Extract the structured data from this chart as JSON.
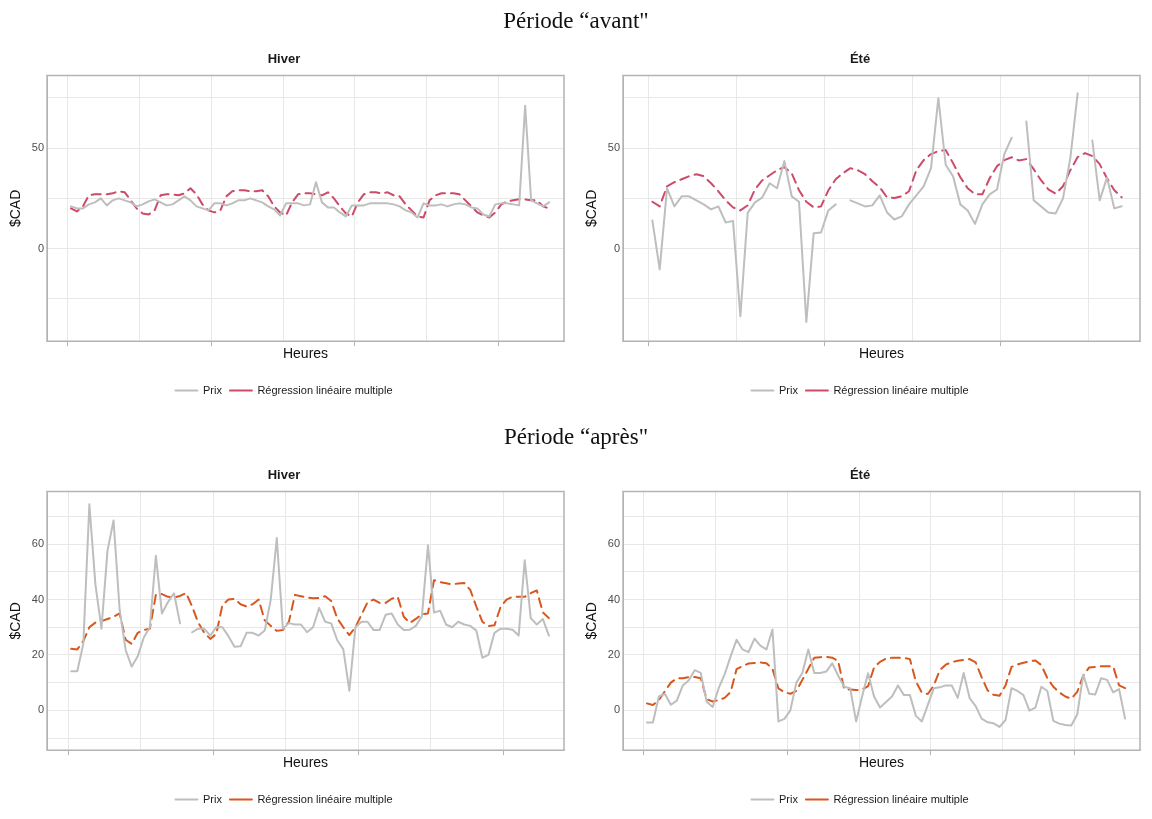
{
  "chart_data": [
    {
      "type": "line",
      "subtitle": "Période “avant\"",
      "title": "Hiver",
      "xlabel": "Heures",
      "ylabel": "$CAD",
      "legend": "bottom",
      "grid": true,
      "marker": "none",
      "tick_labels": "y",
      "categories": [
        null,
        null,
        null,
        null,
        null,
        null,
        null,
        null,
        null,
        null,
        null,
        null,
        null,
        null,
        null,
        null,
        null,
        null,
        null,
        null,
        null,
        null,
        null,
        null,
        null,
        null,
        null,
        null,
        null,
        null,
        null,
        null,
        null,
        null,
        null,
        null,
        null,
        null,
        null,
        null,
        null,
        null,
        null,
        null,
        null,
        null,
        null,
        null,
        null,
        null,
        null,
        null,
        null,
        null,
        null,
        null,
        null,
        null,
        null,
        null,
        null,
        null,
        null,
        null,
        null,
        null,
        null,
        null,
        null,
        null,
        null,
        null,
        null,
        null,
        null,
        null,
        null,
        null,
        null,
        null,
        null
      ],
      "ylim": [
        -46,
        86
      ],
      "yticks": [
        {
          "value": -25,
          "label": null
        },
        0,
        {
          "value": 25,
          "label": null
        },
        50,
        {
          "value": 75,
          "label": null
        }
      ],
      "series": [
        {
          "name": "Prix",
          "color": "#bebebe",
          "line_style": "solid",
          "values": [
            21,
            20,
            20,
            22,
            23,
            25,
            21.5,
            24,
            25,
            24,
            23,
            21,
            22,
            23.5,
            24.5,
            23,
            21.5,
            22,
            24,
            26,
            24,
            21,
            20,
            19,
            22.5,
            22.5,
            21.5,
            22.5,
            24,
            24,
            25,
            24,
            23,
            21,
            19.5,
            16.5,
            22.5,
            22.5,
            22.5,
            21.5,
            22,
            33,
            23,
            20.5,
            20.5,
            18,
            16,
            21.5,
            21.5,
            21.5,
            22.5,
            22.5,
            22.5,
            22.5,
            22,
            21,
            19,
            18,
            15.5,
            22.5,
            21.5,
            21.5,
            22,
            21,
            22,
            22.5,
            22,
            20.5,
            20,
            17,
            16,
            22,
            22.5,
            22.5,
            22,
            21.5,
            71,
            24,
            22.5,
            21,
            23
          ]
        },
        {
          "name": "Régression linéaire multiple",
          "color": "#cd4a68",
          "line_style": "dashed",
          "values": [
            20,
            18.5,
            21,
            26.5,
            27,
            27,
            27,
            27.5,
            28.5,
            28,
            24,
            20,
            17.5,
            17,
            19,
            26.5,
            27,
            27,
            26.5,
            27.5,
            30,
            27,
            22,
            19,
            18,
            19,
            26,
            28.5,
            29,
            29,
            28.5,
            28.5,
            29,
            26,
            21,
            18,
            16.5,
            23,
            27,
            27.5,
            27.5,
            27,
            26.5,
            28,
            25,
            21,
            17.5,
            16,
            23,
            27,
            28,
            28,
            27.5,
            28,
            26.5,
            26,
            22,
            19,
            16,
            15.5,
            24,
            26.5,
            27.5,
            27.5,
            27.5,
            27,
            24,
            21,
            18,
            16.5,
            15.5,
            18,
            22,
            23.5,
            24,
            24.5,
            24.5,
            24,
            24,
            21,
            20
          ]
        }
      ]
    },
    {
      "type": "line",
      "title": "Été",
      "xlabel": "Heures",
      "ylabel": "$CAD",
      "legend": "bottom",
      "grid": true,
      "marker": "none",
      "tick_labels": "y",
      "categories": [
        null,
        null,
        null,
        null,
        null,
        null,
        null,
        null,
        null,
        null,
        null,
        null,
        null,
        null,
        null,
        null,
        null,
        null,
        null,
        null,
        null,
        null,
        null,
        null,
        null,
        null,
        null,
        null,
        null,
        null,
        null,
        null,
        null,
        null,
        null,
        null,
        null,
        null,
        null,
        null,
        null,
        null,
        null,
        null,
        null,
        null,
        null,
        null,
        null,
        null,
        null,
        null,
        null,
        null,
        null,
        null,
        null,
        null,
        null,
        null,
        null,
        null,
        null,
        null,
        null
      ],
      "ylim": [
        -46,
        86
      ],
      "yticks": [
        {
          "value": -25,
          "label": null
        },
        0,
        {
          "value": 25,
          "label": null
        },
        50,
        {
          "value": 75,
          "label": null
        }
      ],
      "series": [
        {
          "name": "Prix",
          "color": "#bebebe",
          "line_style": "solid",
          "values": [
            14,
            -10.3,
            30,
            21,
            26,
            26,
            24,
            22,
            19.5,
            21,
            13,
            13.8,
            -33.6,
            17.8,
            23,
            25.5,
            32.5,
            30,
            43.6,
            26,
            23.3,
            -36.4,
            7.7,
            8,
            19,
            22,
            null,
            24,
            22.5,
            21,
            21.5,
            26.5,
            18,
            14.5,
            16,
            22,
            26.5,
            31,
            40,
            74.8,
            41.7,
            36,
            22,
            19,
            12.3,
            22,
            27,
            29.4,
            47,
            55.1,
            null,
            63.2,
            24,
            21,
            18,
            17.5,
            25,
            45,
            77.2,
            null,
            53.7,
            24,
            35.3,
            20,
            21.1
          ]
        },
        {
          "name": "Régression linéaire multiple",
          "color": "#cd4a68",
          "line_style": "dashed",
          "values": [
            23.3,
            21,
            31,
            33,
            34.5,
            36,
            37,
            36,
            32.5,
            28.5,
            24,
            20.5,
            19,
            21.5,
            29.5,
            34,
            36.5,
            39,
            40.5,
            37.5,
            29,
            23.3,
            20.5,
            21,
            29,
            34.5,
            37.5,
            40,
            39,
            37,
            33.5,
            30.5,
            25.5,
            25.2,
            26,
            28.5,
            39,
            44,
            47,
            48.5,
            49,
            42.5,
            35.5,
            30,
            27,
            27,
            35,
            41,
            44,
            45.4,
            43.8,
            44.5,
            39.5,
            34,
            29.5,
            27.3,
            31,
            39,
            45.5,
            47.5,
            46,
            42,
            35,
            29,
            25.5
          ]
        }
      ]
    },
    {
      "type": "line",
      "subtitle": "Période “après\"",
      "title": "Hiver",
      "xlabel": "Heures",
      "ylabel": "$CAD",
      "legend": "bottom",
      "grid": true,
      "marker": "none",
      "tick_labels": "y",
      "categories": [
        null,
        null,
        null,
        null,
        null,
        null,
        null,
        null,
        null,
        null,
        null,
        null,
        null,
        null,
        null,
        null,
        null,
        null,
        null,
        null,
        null,
        null,
        null,
        null,
        null,
        null,
        null,
        null,
        null,
        null,
        null,
        null,
        null,
        null,
        null,
        null,
        null,
        null,
        null,
        null,
        null,
        null,
        null,
        null,
        null,
        null,
        null,
        null,
        null,
        null,
        null,
        null,
        null,
        null,
        null,
        null,
        null,
        null,
        null,
        null,
        null,
        null,
        null,
        null,
        null,
        null,
        null,
        null,
        null,
        null,
        null,
        null,
        null,
        null,
        null,
        null,
        null,
        null,
        null,
        null
      ],
      "ylim": [
        -14.4,
        79
      ],
      "yticks": [
        {
          "value": -10,
          "label": null
        },
        0,
        {
          "value": 10,
          "label": null
        },
        20,
        {
          "value": 30,
          "label": null
        },
        40,
        {
          "value": 50,
          "label": null
        },
        60,
        {
          "value": 70,
          "label": null
        }
      ],
      "series": [
        {
          "name": "Prix",
          "color": "#bebebe",
          "line_style": "solid",
          "values": [
            14.1,
            14.1,
            24,
            74.4,
            45.5,
            29.5,
            57.7,
            68.6,
            36.5,
            21.8,
            15.8,
            19.5,
            26.3,
            30,
            55.8,
            35,
            39.1,
            42.3,
            31.4,
            null,
            28.2,
            29.5,
            29.5,
            27,
            30.1,
            30,
            26.8,
            23,
            23.1,
            28,
            28,
            27,
            28.8,
            40,
            62.2,
            29.5,
            31.5,
            31,
            31,
            28.2,
            30,
            37,
            32,
            31.4,
            25.3,
            22,
            7.1,
            30,
            32,
            32,
            29,
            29,
            34.5,
            35,
            31,
            29,
            29.1,
            30.5,
            34,
            59.6,
            35.3,
            36,
            31,
            30,
            32,
            31,
            30.5,
            28.8,
            19,
            20,
            28,
            29.5,
            29.5,
            29.1,
            27,
            54.2,
            33.3,
            31,
            33,
            27
          ]
        },
        {
          "name": "Régression linéaire multiple",
          "color": "#d6581f",
          "line_style": "dashed",
          "values": [
            22.2,
            22,
            25,
            30,
            31.7,
            32.2,
            33,
            33.8,
            35,
            25.5,
            24,
            28,
            29,
            29.5,
            41.7,
            42,
            41,
            40.8,
            41.3,
            42.4,
            37.5,
            31.7,
            28,
            25.8,
            27.6,
            38,
            40,
            40.3,
            38.3,
            37.5,
            38.3,
            40,
            32.5,
            30.5,
            28.7,
            29,
            32,
            41.7,
            41.2,
            40.7,
            40.5,
            40.6,
            41.2,
            39.5,
            33.2,
            30,
            27.2,
            30,
            34.5,
            39,
            40,
            38.8,
            38.8,
            40.3,
            41,
            33.8,
            31.6,
            33,
            34.7,
            35,
            47,
            46.3,
            45.9,
            45.5,
            45.8,
            46,
            43.5,
            37.5,
            32,
            30.4,
            30.7,
            37.3,
            40,
            41,
            41,
            41,
            42.3,
            43.3,
            35.4,
            33.3
          ]
        }
      ]
    },
    {
      "type": "line",
      "title": "Été",
      "xlabel": "Heures",
      "ylabel": "$CAD",
      "legend": "bottom",
      "grid": true,
      "marker": "none",
      "tick_labels": "y",
      "categories": [
        null,
        null,
        null,
        null,
        null,
        null,
        null,
        null,
        null,
        null,
        null,
        null,
        null,
        null,
        null,
        null,
        null,
        null,
        null,
        null,
        null,
        null,
        null,
        null,
        null,
        null,
        null,
        null,
        null,
        null,
        null,
        null,
        null,
        null,
        null,
        null,
        null,
        null,
        null,
        null,
        null,
        null,
        null,
        null,
        null,
        null,
        null,
        null,
        null,
        null,
        null,
        null,
        null,
        null,
        null,
        null,
        null,
        null,
        null,
        null,
        null,
        null,
        null,
        null,
        null,
        null,
        null,
        null,
        null,
        null,
        null,
        null,
        null,
        null,
        null,
        null,
        null,
        null,
        null,
        null,
        null
      ],
      "ylim": [
        -14.4,
        79
      ],
      "yticks": [
        {
          "value": -10,
          "label": null
        },
        0,
        {
          "value": 10,
          "label": null
        },
        20,
        {
          "value": 30,
          "label": null
        },
        40,
        {
          "value": 50,
          "label": null
        },
        60,
        {
          "value": 70,
          "label": null
        }
      ],
      "series": [
        {
          "name": "Prix",
          "color": "#bebebe",
          "line_style": "solid",
          "values": [
            -4.4,
            -4.4,
            5,
            6,
            2,
            3.5,
            9,
            10.9,
            14.5,
            13.5,
            3.1,
            1.2,
            8,
            13,
            19.5,
            25.5,
            22,
            21,
            25.9,
            23.3,
            22,
            29.2,
            -4,
            -3.1,
            0,
            10,
            13.5,
            22,
            13.5,
            13.5,
            14,
            17,
            12.5,
            8.5,
            8,
            -4,
            5,
            13.4,
            5,
            1,
            3,
            5,
            9,
            5.5,
            5.5,
            -2,
            -4,
            2,
            8,
            8.3,
            9,
            9,
            4.5,
            13.5,
            4.4,
            1.5,
            -3,
            -4.3,
            -4.7,
            -6,
            -3.5,
            8,
            7,
            5.5,
            -0.1,
            1,
            8.5,
            7,
            -3.8,
            -4.8,
            -5.3,
            -5.5,
            -1.5,
            12.9,
            6,
            5.7,
            11.6,
            11,
            6.5,
            7.7,
            -3
          ]
        },
        {
          "name": "Régression linéaire multiple",
          "color": "#d6581f",
          "line_style": "dashed",
          "values": [
            2.5,
            1.9,
            3.7,
            6.9,
            10,
            11.6,
            11.6,
            12,
            12,
            11.6,
            4,
            3.2,
            3.7,
            4.5,
            6.6,
            14.9,
            16,
            16.9,
            17.1,
            17.3,
            17,
            15,
            7.9,
            6.5,
            6,
            7,
            11,
            15,
            19,
            19.2,
            19.3,
            19,
            17.8,
            7.7,
            7.5,
            7.3,
            7.5,
            8.7,
            15.5,
            17.5,
            18.7,
            19,
            19,
            19,
            18.5,
            10.4,
            6.4,
            5.9,
            9,
            14.5,
            16.5,
            17.4,
            17.9,
            18.2,
            18.5,
            17.3,
            12,
            7.2,
            5.6,
            5.3,
            9,
            15.7,
            16.6,
            17.2,
            17.7,
            18,
            16.3,
            11.6,
            8.5,
            6.5,
            5,
            4.2,
            6.7,
            12.5,
            15.5,
            15.7,
            15.9,
            15.9,
            15.9,
            9,
            8
          ]
        }
      ]
    }
  ]
}
